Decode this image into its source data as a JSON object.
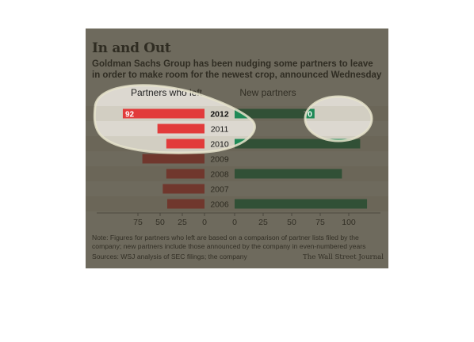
{
  "header": {
    "title": "In and Out",
    "subtitle": "Goldman Sachs Group has been nudging some partners to leave in order to make room for the newest crop, announced Wednesday"
  },
  "footer": {
    "note": "Note: Figures for partners who left are based on a comparison of partner lists filed by the company; new partners include those announced by the company in even-numbered years",
    "sources": "Sources: WSJ analysis of SEC filings; the company",
    "brand": "The Wall Street Journal"
  },
  "colors": {
    "left_bar": "#e23b3b",
    "right_bar": "#1f8a57",
    "background": "#dcd8d0"
  },
  "chart_data": {
    "type": "bar",
    "orientation": "horizontal-diverging",
    "categories": [
      "2012",
      "2011",
      "2010",
      "2009",
      "2008",
      "2007",
      "2006"
    ],
    "series": [
      {
        "name": "Partners who left",
        "side": "left",
        "values": [
          92,
          53,
          43,
          70,
          43,
          47,
          42
        ]
      },
      {
        "name": "New partners",
        "side": "right",
        "values": [
          70,
          0,
          110,
          0,
          94,
          0,
          116
        ]
      }
    ],
    "data_labels": [
      {
        "series": 0,
        "category": "2012",
        "text": "92"
      },
      {
        "series": 1,
        "category": "2012",
        "text": "70"
      }
    ],
    "left_axis": {
      "ticks": [
        "75",
        "50",
        "25",
        "0"
      ],
      "tick_values": [
        75,
        50,
        25,
        0
      ],
      "range": [
        0,
        100
      ]
    },
    "right_axis": {
      "ticks": [
        "0",
        "25",
        "50",
        "75",
        "100"
      ],
      "tick_values": [
        0,
        25,
        50,
        75,
        100
      ],
      "range": [
        0,
        125
      ]
    },
    "grid": false
  }
}
